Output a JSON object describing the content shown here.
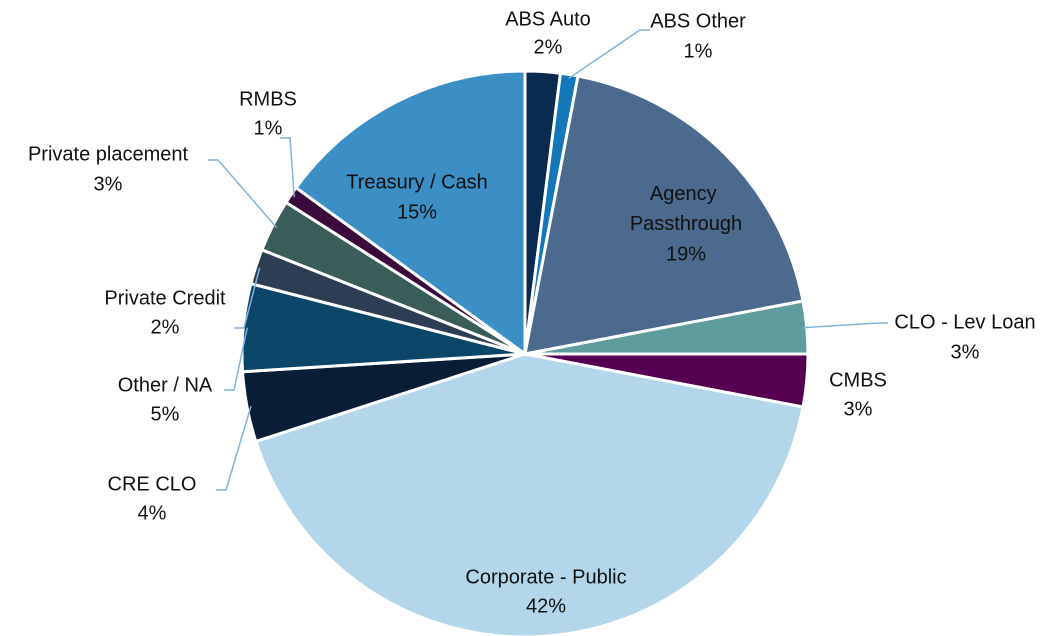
{
  "chart_data": {
    "type": "pie",
    "categories": [
      "ABS Auto",
      "ABS Other",
      "Agency Passthrough",
      "CLO - Lev Loan",
      "CMBS",
      "Corporate - Public",
      "CRE CLO",
      "Other / NA",
      "Private Credit",
      "Private placement",
      "RMBS",
      "Treasury / Cash"
    ],
    "values": [
      2,
      1,
      19,
      3,
      3,
      42,
      4,
      5,
      2,
      3,
      1,
      15
    ],
    "value_labels": [
      "2%",
      "1%",
      "19%",
      "3%",
      "3%",
      "42%",
      "4%",
      "5%",
      "2%",
      "3%",
      "1%",
      "15%"
    ],
    "colors": [
      "#0b2a4f",
      "#1478b8",
      "#4b6a8d",
      "#5f9c9e",
      "#560052",
      "#b3d6ea",
      "#0a1d36",
      "#0b4669",
      "#2d3d54",
      "#3a5d5a",
      "#3a0b3a",
      "#3b8fc4"
    ]
  }
}
